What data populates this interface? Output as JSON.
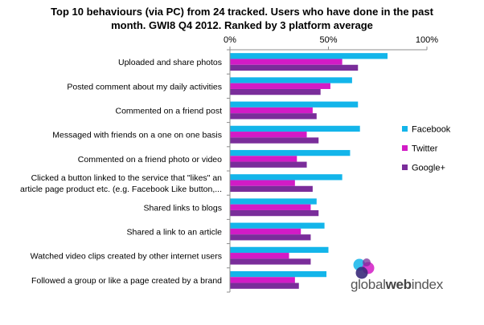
{
  "chart_data": {
    "type": "bar",
    "orientation": "horizontal",
    "title_lines": [
      "Top 10  behaviours (via PC) from 24 tracked. Users who have done in the past",
      "month. GWI8 Q4 2012.  Ranked by 3 platform average"
    ],
    "categories": [
      [
        "Uploaded and share photos"
      ],
      [
        "Posted comment about my daily activities"
      ],
      [
        "Commented on a friend post"
      ],
      [
        "Messaged with friends on a one on one basis"
      ],
      [
        "Commented on a friend photo or video"
      ],
      [
        "Clicked a button linked to the service that \"likes\" an",
        "article page product etc. (e.g. Facebook Like button,..."
      ],
      [
        "Shared links to blogs"
      ],
      [
        "Shared a link to an article"
      ],
      [
        "Watched video clips created by other internet users"
      ],
      [
        "Followed a group or like a page created by a brand"
      ]
    ],
    "series": [
      {
        "name": "Facebook",
        "color": "#13B5EA",
        "values": [
          80,
          62,
          65,
          66,
          61,
          57,
          44,
          48,
          50,
          49
        ]
      },
      {
        "name": "Twitter",
        "color": "#D21BC6",
        "values": [
          57,
          51,
          42,
          39,
          34,
          33,
          41,
          36,
          30,
          33
        ]
      },
      {
        "name": "Google+",
        "color": "#7A2D9A",
        "values": [
          65,
          46,
          44,
          45,
          39,
          42,
          45,
          41,
          41,
          35
        ]
      }
    ],
    "xticks": [
      "0%",
      "50%",
      "100%"
    ],
    "xlim": [
      0,
      100
    ],
    "grid": false,
    "legend_position": "right"
  },
  "brand": {
    "name_light": "global",
    "name_bold": "web",
    "name_end": "index",
    "logo_colors": [
      "#13B5EA",
      "#D21BC6",
      "#7A2D9A"
    ]
  }
}
